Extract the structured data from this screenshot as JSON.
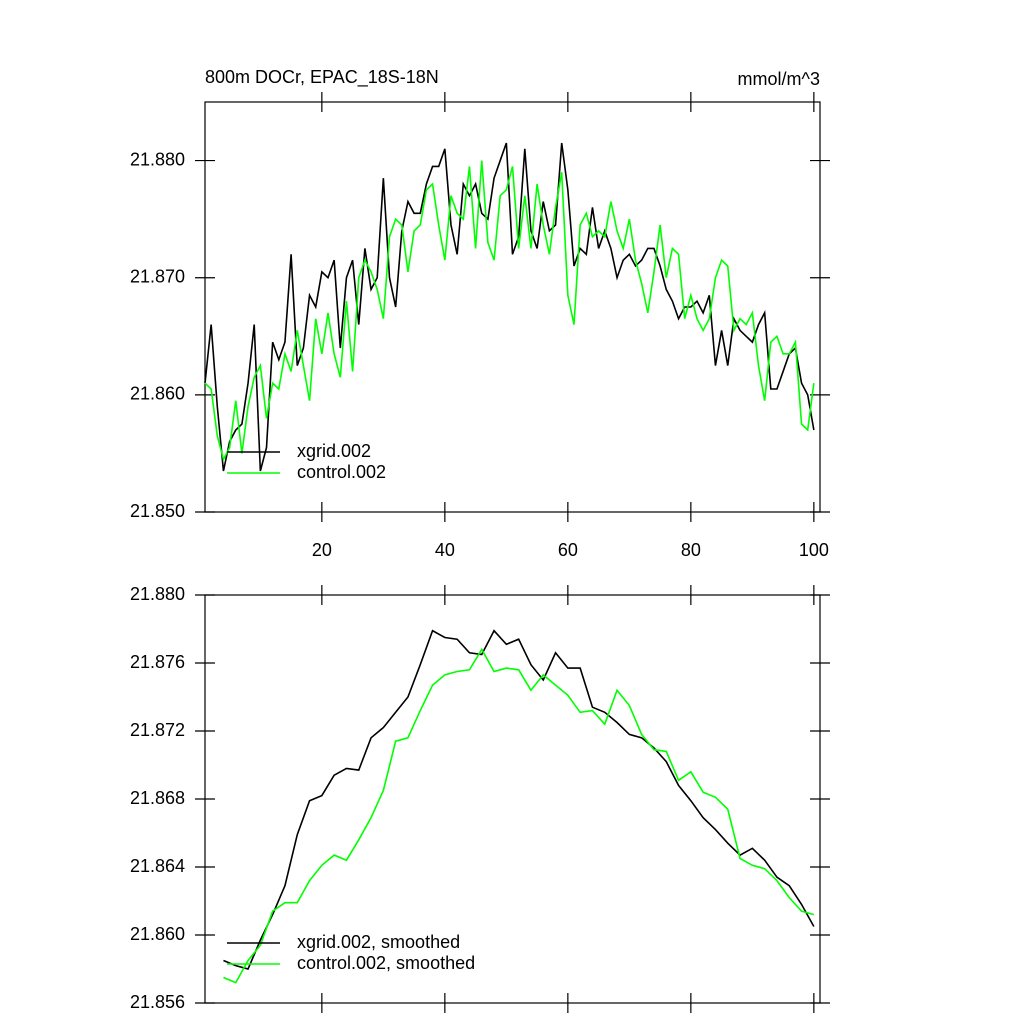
{
  "chart_data": [
    {
      "type": "line",
      "title": "800m DOCr, EPAC_18S-18N",
      "units": "mmol/m^3",
      "x": [
        1,
        2,
        3,
        4,
        5,
        6,
        7,
        8,
        9,
        10,
        11,
        12,
        13,
        14,
        15,
        16,
        17,
        18,
        19,
        20,
        21,
        22,
        23,
        24,
        25,
        26,
        27,
        28,
        29,
        30,
        31,
        32,
        33,
        34,
        35,
        36,
        37,
        38,
        39,
        40,
        41,
        42,
        43,
        44,
        45,
        46,
        47,
        48,
        49,
        50,
        51,
        52,
        53,
        54,
        55,
        56,
        57,
        58,
        59,
        60,
        61,
        62,
        63,
        64,
        65,
        66,
        67,
        68,
        69,
        70,
        71,
        72,
        73,
        74,
        75,
        76,
        77,
        78,
        79,
        80,
        81,
        82,
        83,
        84,
        85,
        86,
        87,
        88,
        89,
        90,
        91,
        92,
        93,
        94,
        95,
        96,
        97,
        98,
        99,
        100
      ],
      "xlim": [
        1,
        101
      ],
      "xticks": [
        20,
        40,
        60,
        80,
        100
      ],
      "ylim": [
        21.85,
        21.885
      ],
      "yticks": [
        {
          "value": 21.85,
          "label": "21.850"
        },
        {
          "value": 21.86,
          "label": "21.860"
        },
        {
          "value": 21.87,
          "label": "21.870"
        },
        {
          "value": 21.88,
          "label": "21.880"
        }
      ],
      "legend": "lower left",
      "series": [
        {
          "name": "xgrid.002",
          "color": "#000000",
          "values": [
            21.861,
            21.866,
            21.859,
            21.8535,
            21.856,
            21.857,
            21.8575,
            21.861,
            21.866,
            21.8535,
            21.8555,
            21.8645,
            21.863,
            21.8645,
            21.872,
            21.8625,
            21.864,
            21.8685,
            21.8675,
            21.8705,
            21.87,
            21.8715,
            21.864,
            21.87,
            21.8715,
            21.866,
            21.8725,
            21.869,
            21.87,
            21.8785,
            21.87,
            21.8675,
            21.874,
            21.8765,
            21.8755,
            21.8755,
            21.878,
            21.8795,
            21.8795,
            21.881,
            21.8745,
            21.872,
            21.878,
            21.877,
            21.878,
            21.8755,
            21.875,
            21.8785,
            21.88,
            21.8815,
            21.872,
            21.8735,
            21.881,
            21.874,
            21.8725,
            21.8765,
            21.874,
            21.8745,
            21.8815,
            21.8775,
            21.871,
            21.8725,
            21.872,
            21.876,
            21.8725,
            21.874,
            21.8725,
            21.87,
            21.8715,
            21.872,
            21.871,
            21.8715,
            21.8725,
            21.8725,
            21.871,
            21.869,
            21.868,
            21.8665,
            21.8675,
            21.8675,
            21.868,
            21.867,
            21.8685,
            21.8625,
            21.8655,
            21.8625,
            21.8665,
            21.8655,
            21.865,
            21.8645,
            21.866,
            21.867,
            21.8605,
            21.8605,
            21.862,
            21.8635,
            21.864,
            21.861,
            21.86,
            21.857
          ]
        },
        {
          "name": "control.002",
          "color": "#00ff00",
          "values": [
            21.861,
            21.8605,
            21.8565,
            21.8545,
            21.8555,
            21.8595,
            21.855,
            21.859,
            21.8615,
            21.8625,
            21.858,
            21.861,
            21.8605,
            21.8635,
            21.862,
            21.8655,
            21.8625,
            21.8595,
            21.8665,
            21.8635,
            21.867,
            21.8635,
            21.8615,
            21.868,
            21.862,
            21.87,
            21.8715,
            21.8705,
            21.869,
            21.8665,
            21.8735,
            21.875,
            21.8745,
            21.8705,
            21.874,
            21.8745,
            21.8775,
            21.878,
            21.8745,
            21.8715,
            21.877,
            21.8755,
            21.875,
            21.8795,
            21.8725,
            21.88,
            21.873,
            21.8715,
            21.877,
            21.8775,
            21.8795,
            21.8725,
            21.877,
            21.8725,
            21.878,
            21.8745,
            21.872,
            21.876,
            21.879,
            21.8685,
            21.866,
            21.8745,
            21.8755,
            21.8735,
            21.874,
            21.8735,
            21.8765,
            21.874,
            21.8725,
            21.875,
            21.8715,
            21.8695,
            21.867,
            21.8705,
            21.8745,
            21.87,
            21.8725,
            21.872,
            21.8665,
            21.8685,
            21.8665,
            21.8655,
            21.8665,
            21.87,
            21.8715,
            21.871,
            21.8655,
            21.8665,
            21.866,
            21.867,
            21.8625,
            21.8595,
            21.8645,
            21.865,
            21.8635,
            21.8635,
            21.8645,
            21.8575,
            21.857,
            21.861
          ]
        }
      ]
    },
    {
      "type": "line",
      "x": [
        4,
        6,
        8,
        10,
        12,
        14,
        16,
        18,
        20,
        22,
        24,
        26,
        28,
        30,
        32,
        34,
        36,
        38,
        40,
        42,
        44,
        46,
        48,
        50,
        52,
        54,
        56,
        58,
        60,
        62,
        64,
        66,
        68,
        70,
        72,
        74,
        76,
        78,
        80,
        82,
        84,
        86,
        88,
        90,
        92,
        94,
        96,
        98,
        100
      ],
      "xlim": [
        1,
        101
      ],
      "xticks": [
        20,
        40,
        60,
        80,
        100
      ],
      "ylim": [
        21.856,
        21.88
      ],
      "yticks": [
        21.856,
        {
          "value": 21.86,
          "label": "21.860"
        },
        21.864,
        21.868,
        21.872,
        21.876,
        {
          "value": 21.88,
          "label": "21.880"
        }
      ],
      "legend": "lower left",
      "series": [
        {
          "name": "xgrid.002, smoothed",
          "color": "#000000",
          "values": [
            21.8585,
            21.8582,
            21.858,
            21.8597,
            21.8612,
            21.8629,
            21.8659,
            21.8679,
            21.8682,
            21.8694,
            21.8698,
            21.8697,
            21.8716,
            21.8722,
            21.8731,
            21.874,
            21.8759,
            21.8779,
            21.8775,
            21.8774,
            21.8766,
            21.8765,
            21.8779,
            21.8771,
            21.8774,
            21.8759,
            21.875,
            21.8766,
            21.8757,
            21.8757,
            21.8734,
            21.8731,
            21.8725,
            21.8718,
            21.8716,
            21.871,
            21.8702,
            21.8688,
            21.8679,
            21.8669,
            21.8662,
            21.8654,
            21.8647,
            21.8651,
            21.8644,
            21.8634,
            21.8629,
            21.8618,
            21.8605
          ]
        },
        {
          "name": "control.002, smoothed",
          "color": "#00ff00",
          "values": [
            21.8575,
            21.8572,
            21.8585,
            21.8594,
            21.8614,
            21.8619,
            21.8619,
            21.8632,
            21.8641,
            21.8647,
            21.8644,
            21.8656,
            21.8669,
            21.8685,
            21.8714,
            21.8716,
            21.8732,
            21.8747,
            21.8753,
            21.8755,
            21.8756,
            21.8768,
            21.8755,
            21.8757,
            21.8756,
            21.8744,
            21.8753,
            21.8747,
            21.8741,
            21.8731,
            21.8732,
            21.8724,
            21.8744,
            21.8735,
            21.8718,
            21.8709,
            21.8708,
            21.8691,
            21.8696,
            21.8684,
            21.8681,
            21.8674,
            21.8645,
            21.8641,
            21.8639,
            21.8632,
            21.8622,
            21.8614,
            21.8612
          ]
        }
      ]
    }
  ]
}
